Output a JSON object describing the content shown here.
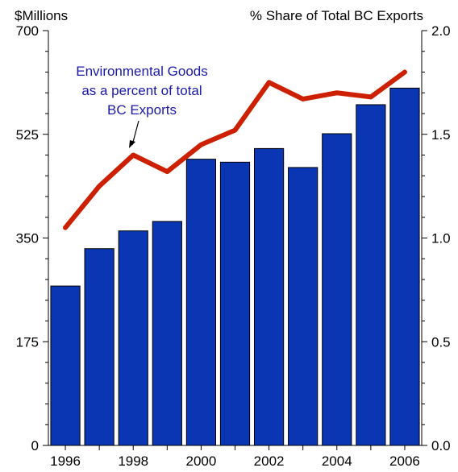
{
  "chart_data": {
    "type": "bar",
    "categories": [
      "1996",
      "1997",
      "1998",
      "1999",
      "2000",
      "2001",
      "2002",
      "2003",
      "2004",
      "2005",
      "2006"
    ],
    "x_tick_labels": [
      "1996",
      "1998",
      "2000",
      "2002",
      "2004",
      "2006"
    ],
    "series": [
      {
        "type": "bar",
        "axis": "left",
        "color": "#0a36b4",
        "values": [
          269,
          332,
          362,
          378,
          483,
          478,
          501,
          469,
          526,
          575,
          603
        ]
      },
      {
        "type": "line",
        "axis": "right",
        "color": "#cc2000",
        "values": [
          1.05,
          1.25,
          1.4,
          1.32,
          1.45,
          1.52,
          1.75,
          1.67,
          1.7,
          1.68,
          1.8
        ]
      }
    ],
    "left_axis": {
      "label": "$Millions",
      "ylim": [
        0,
        700
      ],
      "ticks": [
        0,
        175,
        350,
        525,
        700
      ],
      "tick_labels": [
        "0",
        "175",
        "350",
        "525",
        "700"
      ]
    },
    "right_axis": {
      "label": "% Share of Total BC Exports",
      "ylim": [
        0,
        2.0
      ],
      "ticks": [
        0,
        0.5,
        1.0,
        1.5,
        2.0
      ],
      "tick_labels": [
        "0.0",
        "0.5",
        "1.0",
        "1.5",
        "2.0"
      ]
    },
    "annotation": {
      "lines": [
        "Environmental Goods",
        "as a percent of total",
        "BC Exports"
      ],
      "points_to": "1998",
      "color": "#1a1aa8"
    },
    "grid": false,
    "legend": "none"
  }
}
